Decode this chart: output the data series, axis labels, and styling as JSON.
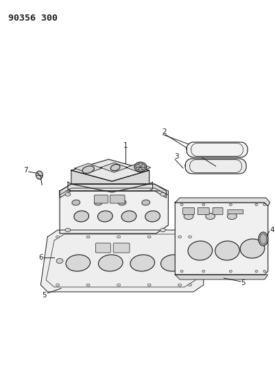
{
  "title": "90356 300",
  "bg": "#ffffff",
  "lc": "#1a1a1a",
  "lw": 0.8,
  "fig_w": 4.01,
  "fig_h": 5.33,
  "dpi": 100
}
